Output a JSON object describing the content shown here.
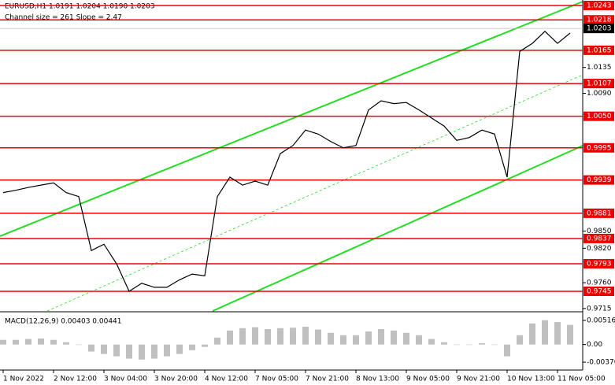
{
  "chart_data": [
    {
      "type": "line",
      "title": "EURUSD,H1  1.0191 1.0204 1.0190 1.0203",
      "subtitle": "Channel size = 261 Slope = 2.47",
      "categories": [
        "1 Nov 2022",
        null,
        null,
        null,
        "2 Nov 12:00",
        null,
        null,
        null,
        "3 Nov 04:00",
        null,
        null,
        null,
        "3 Nov 20:00",
        null,
        null,
        null,
        "4 Nov 12:00",
        null,
        null,
        null,
        "7 Nov 05:00",
        null,
        null,
        null,
        "7 Nov 21:00",
        null,
        null,
        null,
        "8 Nov 13:00",
        null,
        null,
        null,
        "9 Nov 05:00",
        null,
        null,
        null,
        "9 Nov 21:00",
        null,
        null,
        null,
        "10 Nov 13:00",
        null,
        null,
        null,
        "11 Nov 05:00",
        null
      ],
      "values": [
        0.9917,
        0.9921,
        0.9926,
        0.993,
        0.9934,
        0.9917,
        0.991,
        0.9816,
        0.9827,
        0.9793,
        0.9745,
        0.9759,
        0.9752,
        0.9752,
        0.9765,
        0.9775,
        0.9772,
        0.991,
        0.9944,
        0.993,
        0.9937,
        0.993,
        0.9985,
        0.9999,
        1.0026,
        1.0019,
        1.0006,
        0.9995,
        0.9999,
        1.0061,
        1.0077,
        1.0072,
        1.0074,
        1.0061,
        1.0047,
        1.0033,
        1.0008,
        1.0013,
        1.0026,
        1.0019,
        0.9944,
        1.0163,
        1.0177,
        1.0198,
        1.0177,
        1.0195
      ],
      "color": "#000000",
      "ylim": [
        0.97107,
        1.02526
      ],
      "yticks": [
        1.0135,
        {
          "value": 1.009,
          "label": "1.0090"
        },
        {
          "value": 0.985,
          "label": "0.9850"
        },
        {
          "value": 0.982,
          "label": "0.9820"
        },
        {
          "value": 0.976,
          "label": "0.9760"
        },
        0.9715
      ],
      "levels": [
        1.0243,
        1.0218,
        1.0165,
        1.0107,
        {
          "value": 1.005,
          "label": "1.0050"
        },
        0.9995,
        0.9939,
        0.9881,
        0.9837,
        0.9793,
        0.9745
      ],
      "level_color": "#ee0000",
      "current_price": 1.0203
    },
    {
      "type": "bar",
      "title": "MACD(12,26,9) 0.00403 0.00441",
      "values": [
        0.001,
        0.001,
        0.0012,
        0.0013,
        0.001,
        0.0005,
        0,
        -0.0015,
        -0.002,
        -0.0025,
        -0.003,
        -0.0032,
        -0.003,
        -0.0025,
        -0.002,
        -0.0012,
        -0.0005,
        0.0015,
        0.003,
        0.0035,
        0.0037,
        0.0033,
        0.0035,
        0.0036,
        0.0038,
        0.0032,
        0.0025,
        0.002,
        0.002,
        0.0028,
        0.0033,
        0.003,
        0.0025,
        0.002,
        0.0012,
        0.0005,
        0,
        0,
        0.0003,
        0,
        -0.0025,
        0.002,
        0.0045,
        0.0052,
        0.0048,
        0.0042
      ],
      "color": "#c0c0c0",
      "ylim": [
        -0.00526,
        0.00632
      ],
      "yticks": [
        0.00516,
        {
          "value": 0,
          "label": "0.00"
        },
        -0.00376
      ]
    }
  ]
}
